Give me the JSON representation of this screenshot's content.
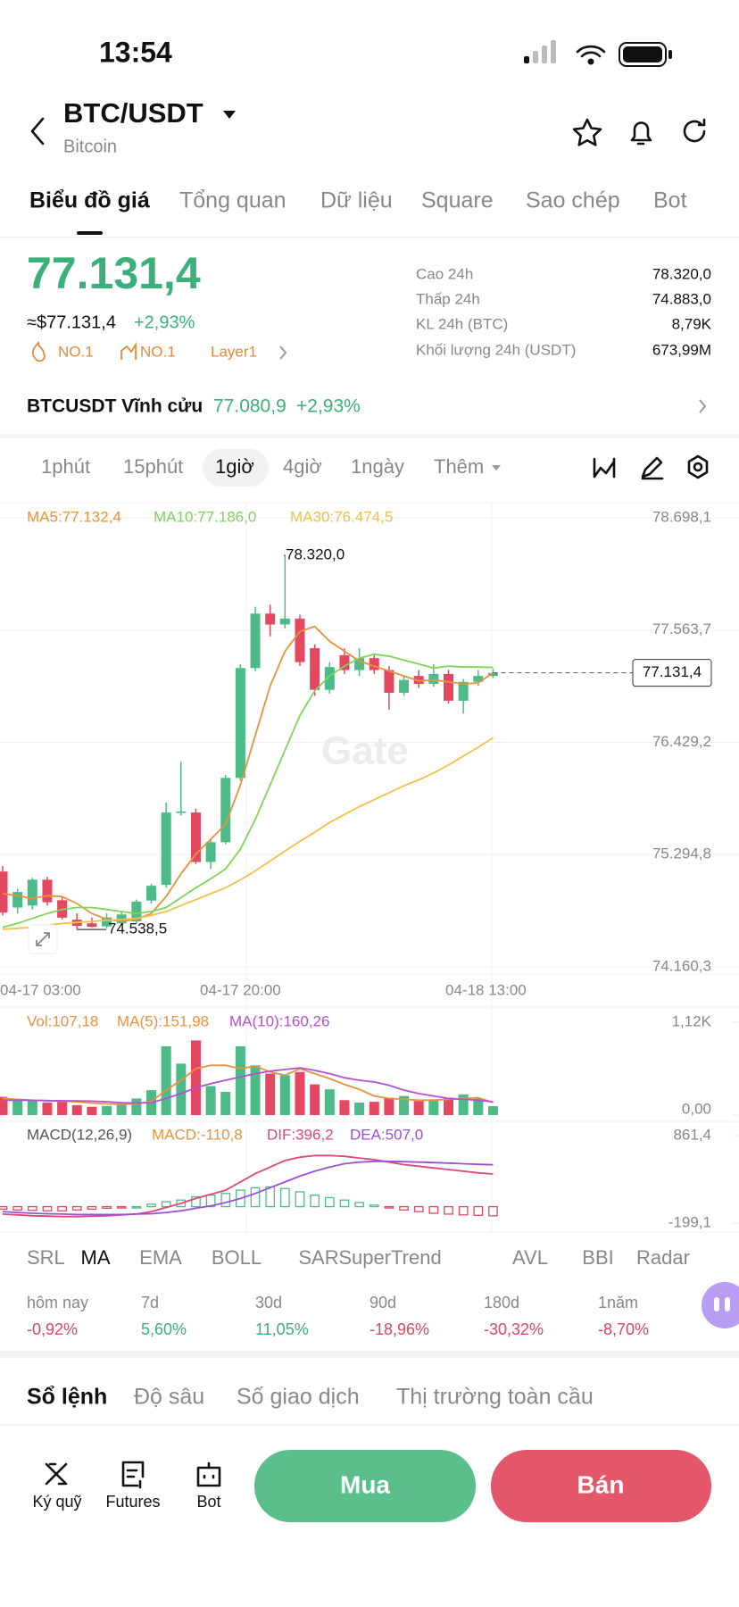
{
  "status": {
    "time": "13:54"
  },
  "header": {
    "pair": "BTC/USDT",
    "name": "Bitcoin"
  },
  "tabs": [
    "Biểu đồ giá",
    "Tổng quan",
    "Dữ liệu",
    "Square",
    "Sao chép",
    "Bot"
  ],
  "price": {
    "last": "77.131,4",
    "usd": "≈$77.131,4",
    "change": "+2,93%",
    "badges": [
      "NO.1",
      "NO.1",
      "Layer1"
    ]
  },
  "stats": [
    {
      "label": "Cao 24h",
      "value": "78.320,0"
    },
    {
      "label": "Thấp 24h",
      "value": "74.883,0"
    },
    {
      "label": "KL 24h (BTC)",
      "value": "8,79K"
    },
    {
      "label": "Khối lượng 24h (USDT)",
      "value": "673,99M"
    }
  ],
  "perpetual": {
    "name": "BTCUSDT Vĩnh cửu",
    "price": "77.080,9",
    "change": "+2,93%"
  },
  "intervals": [
    "1phút",
    "15phút",
    "1giờ",
    "4giờ",
    "1ngày",
    "Thêm"
  ],
  "chart": {
    "type": "candlestick",
    "ma_legend": [
      "MA5:77.132,4",
      "MA10:77.186,0",
      "MA30:76.474,5"
    ],
    "ylim": [
      74160.3,
      78698.1
    ],
    "yticks": [
      {
        "value": 78698.1,
        "label": "78.698,1"
      },
      {
        "value": 77563.7,
        "label": "77.563,7"
      },
      {
        "value": 76429.2,
        "label": "76.429,2"
      },
      {
        "value": 75294.8,
        "label": "75.294,8"
      },
      {
        "value": 74160.3,
        "label": "74.160,3"
      }
    ],
    "open": [
      75124,
      74760,
      74780,
      75041,
      74834,
      74637,
      74600,
      74570,
      74600,
      74620,
      74830,
      74990,
      75720,
      75720,
      75220,
      75420,
      76070,
      77180,
      77730,
      77620,
      77680,
      77380,
      76960,
      77310,
      77160,
      77280,
      77160,
      76930,
      77100,
      77020,
      77120,
      76850,
      77040,
      77100
    ],
    "high": [
      75180,
      74950,
      75060,
      75070,
      74870,
      74700,
      74660,
      74700,
      74720,
      74840,
      75000,
      75820,
      76230,
      75760,
      75450,
      76100,
      77220,
      77800,
      77820,
      78320,
      77720,
      77420,
      77240,
      77380,
      77380,
      77320,
      77200,
      77100,
      77160,
      77220,
      77160,
      77070,
      77160,
      77170
    ],
    "low": [
      74680,
      74700,
      74740,
      74780,
      74640,
      74538.5,
      74560,
      74550,
      74580,
      74600,
      74800,
      74960,
      75690,
      75200,
      75150,
      75400,
      76040,
      77150,
      77500,
      77580,
      77200,
      76900,
      76920,
      77120,
      77100,
      77120,
      76760,
      76900,
      76980,
      76990,
      76820,
      76720,
      77000,
      77080
    ],
    "close": [
      74709,
      74917,
      75041,
      74813,
      74658,
      74575,
      74565,
      74660,
      74690,
      74820,
      74980,
      75720,
      75730,
      75220,
      75420,
      76070,
      77180,
      77730,
      77620,
      77680,
      77240,
      76960,
      77190,
      77160,
      77280,
      77160,
      76930,
      77060,
      77020,
      77120,
      76850,
      77040,
      77100,
      77131.4
    ],
    "ma5": [
      74900,
      74880,
      74850,
      74880,
      74870,
      74800,
      74700,
      74640,
      74620,
      74640,
      74700,
      74870,
      75100,
      75300,
      75450,
      75600,
      76000,
      76500,
      77000,
      77350,
      77550,
      77600,
      77450,
      77350,
      77250,
      77200,
      77150,
      77100,
      77050,
      77060,
      77040,
      77020,
      77030,
      77132.4
    ],
    "ma10": [
      74560,
      74600,
      74650,
      74700,
      74740,
      74760,
      74760,
      74740,
      74720,
      74700,
      74720,
      74760,
      74860,
      74960,
      75050,
      75150,
      75350,
      75650,
      76000,
      76350,
      76700,
      76950,
      77100,
      77200,
      77280,
      77320,
      77300,
      77260,
      77220,
      77180,
      77200,
      77190,
      77190,
      77186.0
    ],
    "ma30": [
      74540,
      74550,
      74560,
      74580,
      74600,
      74610,
      74620,
      74630,
      74640,
      74650,
      74680,
      74720,
      74780,
      74840,
      74900,
      74960,
      75040,
      75130,
      75230,
      75330,
      75430,
      75520,
      75620,
      75700,
      75780,
      75850,
      75920,
      75990,
      76050,
      76120,
      76200,
      76290,
      76380,
      76474.5
    ],
    "high_label": "78.320,0",
    "low_label": "74.538,5",
    "last_label": "77.131,4",
    "watermark": "Gate",
    "time_labels": [
      "04-17 03:00",
      "04-17 20:00",
      "04-18 13:00"
    ]
  },
  "volume": {
    "legend": [
      "Vol:107,18",
      "MA(5):151,98",
      "MA(10):160,26"
    ],
    "ylim": [
      0,
      1120
    ],
    "yticks": [
      {
        "value": 1120,
        "label": "1,12K"
      },
      {
        "value": 0,
        "label": "0,00"
      }
    ],
    "values": [
      220,
      190,
      170,
      150,
      160,
      120,
      100,
      110,
      130,
      200,
      300,
      830,
      620,
      900,
      350,
      280,
      830,
      600,
      500,
      480,
      520,
      370,
      310,
      180,
      150,
      160,
      210,
      230,
      170,
      180,
      210,
      250,
      200,
      107.18
    ],
    "ma5": [
      200,
      190,
      180,
      175,
      170,
      160,
      145,
      135,
      130,
      135,
      165,
      300,
      420,
      560,
      600,
      600,
      560,
      590,
      520,
      480,
      560,
      500,
      440,
      370,
      310,
      230,
      200,
      190,
      180,
      180,
      190,
      200,
      210,
      151.98
    ],
    "ma10": [
      180,
      180,
      178,
      175,
      172,
      170,
      168,
      160,
      150,
      145,
      150,
      200,
      260,
      330,
      380,
      420,
      460,
      500,
      530,
      550,
      570,
      540,
      500,
      450,
      420,
      400,
      360,
      300,
      260,
      230,
      200,
      190,
      180,
      160.26
    ]
  },
  "macd": {
    "legend": [
      "MACD(12,26,9)",
      "MACD:-110,8",
      "DIF:396,2",
      "DEA:507,0"
    ],
    "ylim": [
      -199.1,
      861.4
    ],
    "yticks": [
      {
        "value": 861.4,
        "label": "861,4"
      },
      {
        "value": -199.1,
        "label": "-199,1"
      }
    ],
    "hist": [
      -30,
      -40,
      -45,
      -50,
      -50,
      -40,
      -30,
      -20,
      -10,
      0,
      30,
      60,
      80,
      120,
      140,
      160,
      200,
      230,
      240,
      220,
      180,
      140,
      110,
      80,
      50,
      20,
      -10,
      -40,
      -60,
      -80,
      -90,
      -100,
      -105,
      -110.8
    ],
    "dif": [
      -90,
      -100,
      -110,
      -115,
      -120,
      -120,
      -115,
      -110,
      -100,
      -90,
      -60,
      -10,
      40,
      100,
      150,
      200,
      300,
      400,
      480,
      560,
      600,
      620,
      620,
      610,
      590,
      570,
      540,
      510,
      490,
      470,
      450,
      430,
      410,
      396.2
    ],
    "dea": [
      -60,
      -70,
      -80,
      -85,
      -90,
      -95,
      -95,
      -95,
      -95,
      -90,
      -85,
      -70,
      -50,
      -20,
      10,
      50,
      100,
      160,
      230,
      300,
      370,
      430,
      480,
      520,
      540,
      550,
      550,
      545,
      540,
      535,
      528,
      520,
      513,
      507.0
    ]
  },
  "indicators": [
    "SRL",
    "MA",
    "EMA",
    "BOLL",
    "SAR",
    "SuperTrend",
    "AVL",
    "BBI",
    "Radar"
  ],
  "performance": [
    {
      "label": "hôm nay",
      "value": "-0,92%"
    },
    {
      "label": "7d",
      "value": "5,60%"
    },
    {
      "label": "30d",
      "value": "11,05%"
    },
    {
      "label": "90d",
      "value": "-18,96%"
    },
    {
      "label": "180d",
      "value": "-30,32%"
    },
    {
      "label": "1năm",
      "value": "-8,70%"
    }
  ],
  "book_tabs": [
    "Sổ lệnh",
    "Độ sâu",
    "Số giao dịch",
    "Thị trường toàn cầu"
  ],
  "bottom": {
    "tools": [
      "Ký quỹ",
      "Futures",
      "Bot"
    ],
    "buy": "Mua",
    "sell": "Bán"
  }
}
